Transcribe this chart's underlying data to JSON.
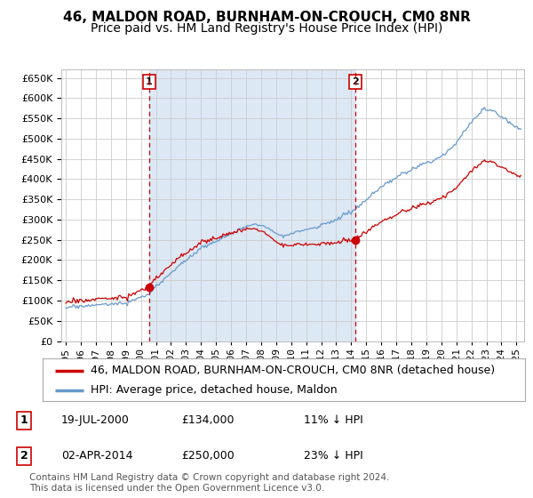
{
  "title": "46, MALDON ROAD, BURNHAM-ON-CROUCH, CM0 8NR",
  "subtitle": "Price paid vs. HM Land Registry's House Price Index (HPI)",
  "yticks": [
    0,
    50000,
    100000,
    150000,
    200000,
    250000,
    300000,
    350000,
    400000,
    450000,
    500000,
    550000,
    600000,
    650000
  ],
  "ylim": [
    0,
    670000
  ],
  "xlim_start": 1994.7,
  "xlim_end": 2025.5,
  "sale1_x": 2000.54,
  "sale1_y": 134000,
  "sale1_label": "1",
  "sale1_date": "19-JUL-2000",
  "sale1_price": "£134,000",
  "sale1_pct": "11% ↓ HPI",
  "sale2_x": 2014.25,
  "sale2_y": 250000,
  "sale2_label": "2",
  "sale2_date": "02-APR-2014",
  "sale2_price": "£250,000",
  "sale2_pct": "23% ↓ HPI",
  "red_color": "#cc0000",
  "blue_color": "#6699cc",
  "fill_color": "#dde8f5",
  "marker_color": "#cc0000",
  "annotation_box_color": "#cc0000",
  "legend_line1": "46, MALDON ROAD, BURNHAM-ON-CROUCH, CM0 8NR (detached house)",
  "legend_line2": "HPI: Average price, detached house, Maldon",
  "footer1": "Contains HM Land Registry data © Crown copyright and database right 2024.",
  "footer2": "This data is licensed under the Open Government Licence v3.0.",
  "bg_color": "#ffffff",
  "grid_color": "#cccccc",
  "title_fontsize": 11,
  "subtitle_fontsize": 10,
  "tick_fontsize": 8,
  "legend_fontsize": 9,
  "footer_fontsize": 7.5
}
